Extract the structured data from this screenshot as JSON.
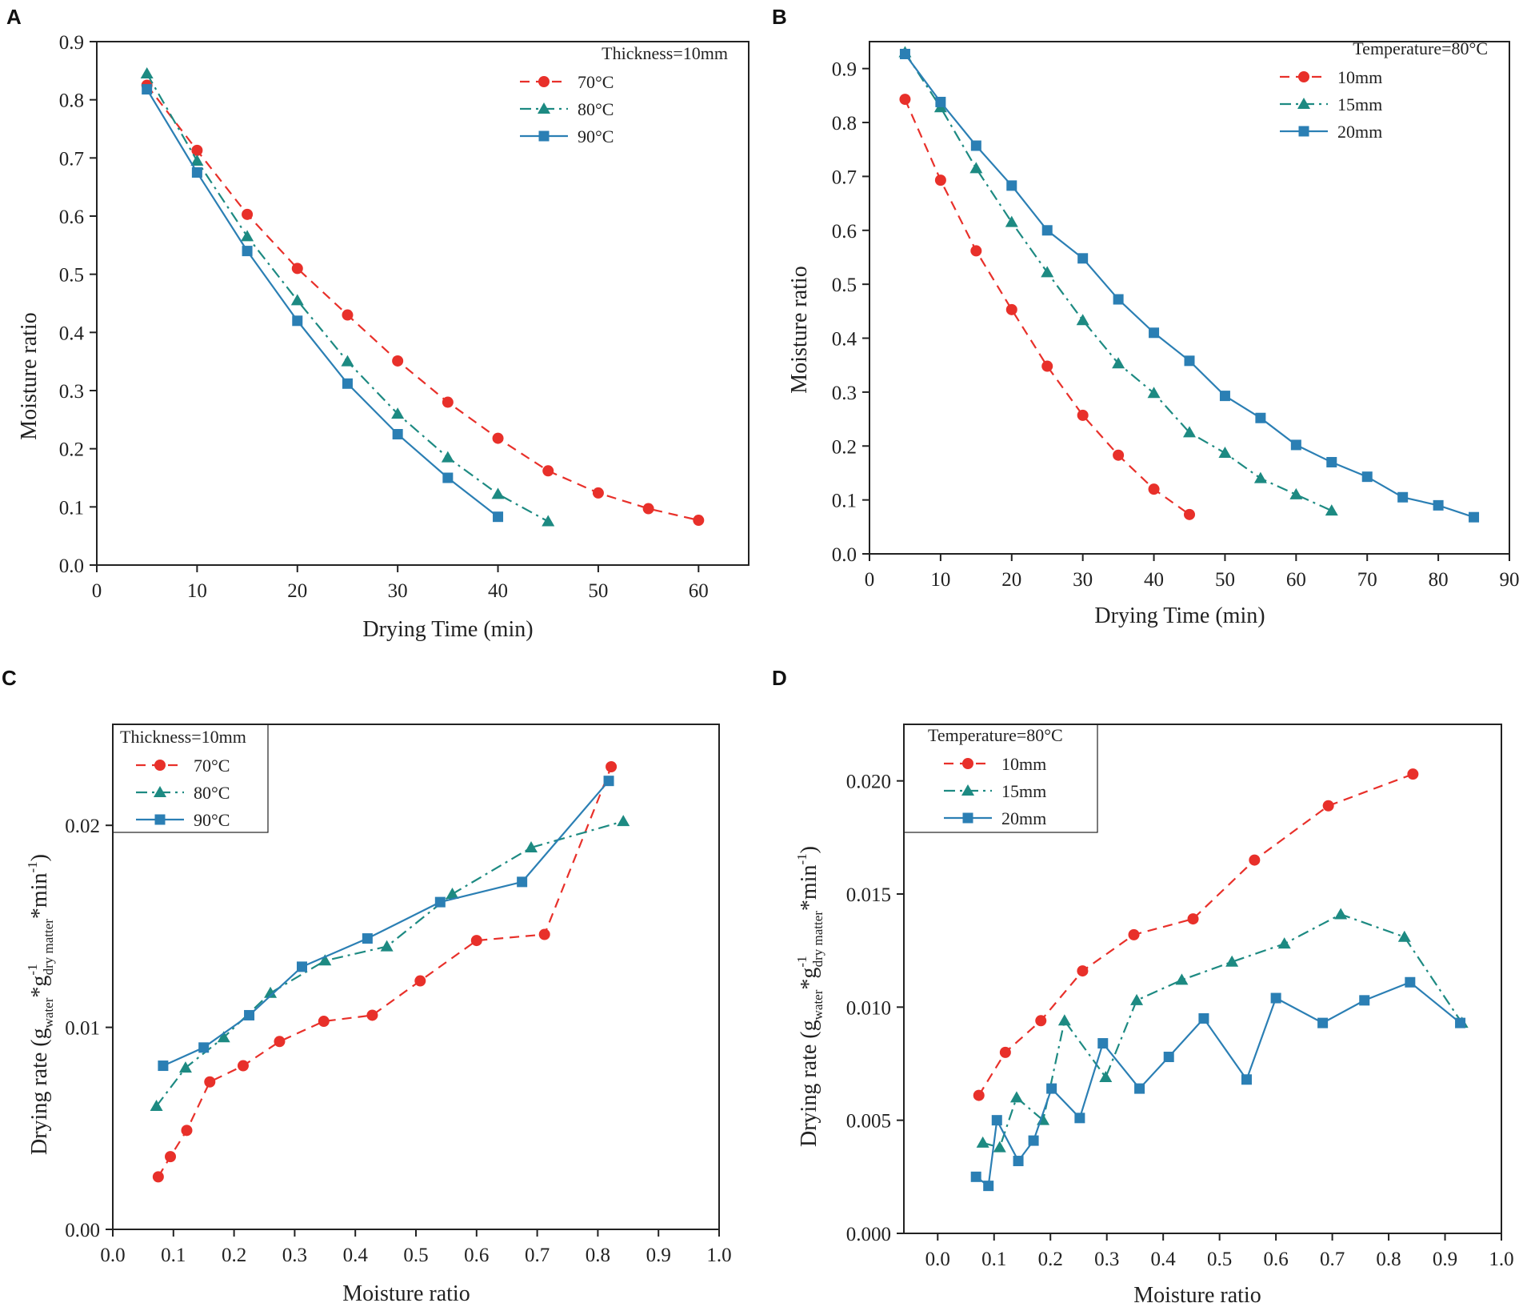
{
  "colors": {
    "red": "#e8302a",
    "teal": "#1d8a82",
    "blue": "#2b7fb4"
  },
  "chart_data": [
    {
      "id": "A",
      "letter": "A",
      "type": "line",
      "xlabel": "Drying Time (min)",
      "ylabel": "Moisture ratio",
      "xlim": [
        0,
        65
      ],
      "ylim": [
        0,
        0.9
      ],
      "xticks": [
        "0",
        "10",
        "20",
        "30",
        "40",
        "50",
        "60"
      ],
      "xtick_values": [
        0,
        10,
        20,
        30,
        40,
        50,
        60
      ],
      "yticks": [
        "0.0",
        "0.1",
        "0.2",
        "0.3",
        "0.4",
        "0.5",
        "0.6",
        "0.7",
        "0.8",
        "0.9"
      ],
      "ytick_values": [
        0,
        0.1,
        0.2,
        0.3,
        0.4,
        0.5,
        0.6,
        0.7,
        0.8,
        0.9
      ],
      "legend_title": "Thickness=10mm",
      "legend_position": "top-right",
      "series": [
        {
          "name": "70°C",
          "color": "red",
          "dash": "dashed",
          "marker": "circle",
          "x": [
            5,
            10,
            15,
            20,
            25,
            30,
            35,
            40,
            45,
            50,
            55,
            60
          ],
          "y": [
            0.825,
            0.713,
            0.603,
            0.51,
            0.43,
            0.351,
            0.28,
            0.218,
            0.162,
            0.124,
            0.097,
            0.077
          ]
        },
        {
          "name": "80°C",
          "color": "teal",
          "dash": "dashdot",
          "marker": "triangle",
          "x": [
            5,
            10,
            15,
            20,
            25,
            30,
            35,
            40,
            45
          ],
          "y": [
            0.845,
            0.695,
            0.565,
            0.455,
            0.35,
            0.26,
            0.185,
            0.122,
            0.075
          ]
        },
        {
          "name": "90°C",
          "color": "blue",
          "dash": "solid",
          "marker": "square",
          "x": [
            5,
            10,
            15,
            20,
            25,
            30,
            35,
            40
          ],
          "y": [
            0.818,
            0.675,
            0.54,
            0.42,
            0.312,
            0.225,
            0.15,
            0.083
          ]
        }
      ]
    },
    {
      "id": "B",
      "letter": "B",
      "type": "line",
      "xlabel": "Drying Time (min)",
      "ylabel": "Moisture ratio",
      "xlim": [
        0,
        90
      ],
      "ylim": [
        0,
        0.95
      ],
      "xticks": [
        "0",
        "10",
        "20",
        "30",
        "40",
        "50",
        "60",
        "70",
        "80",
        "90"
      ],
      "xtick_values": [
        0,
        10,
        20,
        30,
        40,
        50,
        60,
        70,
        80,
        90
      ],
      "yticks": [
        "0.0",
        "0.1",
        "0.2",
        "0.3",
        "0.4",
        "0.5",
        "0.6",
        "0.7",
        "0.8",
        "0.9"
      ],
      "ytick_values": [
        0,
        0.1,
        0.2,
        0.3,
        0.4,
        0.5,
        0.6,
        0.7,
        0.8,
        0.9
      ],
      "legend_title": "Temperature=80°C",
      "legend_position": "top-right",
      "series": [
        {
          "name": "10mm",
          "color": "red",
          "dash": "dashed",
          "marker": "circle",
          "x": [
            5,
            10,
            15,
            20,
            25,
            30,
            35,
            40,
            45
          ],
          "y": [
            0.843,
            0.693,
            0.562,
            0.453,
            0.348,
            0.257,
            0.183,
            0.12,
            0.073
          ]
        },
        {
          "name": "15mm",
          "color": "teal",
          "dash": "dashdot",
          "marker": "triangle",
          "x": [
            5,
            10,
            15,
            20,
            25,
            30,
            35,
            40,
            45,
            50,
            55,
            60,
            65
          ],
          "y": [
            0.93,
            0.828,
            0.715,
            0.615,
            0.522,
            0.433,
            0.353,
            0.298,
            0.225,
            0.187,
            0.14,
            0.11,
            0.08
          ]
        },
        {
          "name": "20mm",
          "color": "blue",
          "dash": "solid",
          "marker": "square",
          "x": [
            5,
            10,
            15,
            20,
            25,
            30,
            35,
            40,
            45,
            50,
            55,
            60,
            65,
            70,
            75,
            80,
            85
          ],
          "y": [
            0.927,
            0.838,
            0.757,
            0.683,
            0.6,
            0.548,
            0.472,
            0.41,
            0.358,
            0.293,
            0.252,
            0.202,
            0.17,
            0.143,
            0.105,
            0.09,
            0.068
          ]
        }
      ]
    },
    {
      "id": "C",
      "letter": "C",
      "type": "line",
      "xlabel": "Moisture ratio",
      "ylabel": "Drying rate",
      "xlim": [
        0,
        1.0
      ],
      "ylim": [
        0,
        0.025
      ],
      "xticks": [
        "0.0",
        "0.1",
        "0.2",
        "0.3",
        "0.4",
        "0.5",
        "0.6",
        "0.7",
        "0.8",
        "0.9",
        "1.0"
      ],
      "xtick_values": [
        0,
        0.1,
        0.2,
        0.3,
        0.4,
        0.5,
        0.6,
        0.7,
        0.8,
        0.9,
        1.0
      ],
      "yticks": [
        "0.00",
        "0.01",
        "0.02"
      ],
      "ytick_values": [
        0,
        0.01,
        0.02
      ],
      "legend_title": "Thickness=10mm",
      "legend_position": "top-left",
      "series": [
        {
          "name": "70°C",
          "color": "red",
          "dash": "dashed",
          "marker": "circle",
          "x": [
            0.075,
            0.095,
            0.122,
            0.16,
            0.215,
            0.275,
            0.348,
            0.428,
            0.507,
            0.6,
            0.712,
            0.822
          ],
          "y": [
            0.0026,
            0.0036,
            0.0049,
            0.0073,
            0.0081,
            0.0093,
            0.0103,
            0.0106,
            0.0123,
            0.0143,
            0.0146,
            0.0229
          ]
        },
        {
          "name": "80°C",
          "color": "teal",
          "dash": "dashdot",
          "marker": "triangle",
          "x": [
            0.072,
            0.12,
            0.183,
            0.26,
            0.35,
            0.452,
            0.56,
            0.69,
            0.842
          ],
          "y": [
            0.0061,
            0.008,
            0.0095,
            0.0117,
            0.0133,
            0.014,
            0.0166,
            0.0189,
            0.0202
          ]
        },
        {
          "name": "90°C",
          "color": "blue",
          "dash": "solid",
          "marker": "square",
          "x": [
            0.083,
            0.15,
            0.225,
            0.312,
            0.42,
            0.54,
            0.675,
            0.818
          ],
          "y": [
            0.0081,
            0.009,
            0.0106,
            0.013,
            0.0144,
            0.0162,
            0.0172,
            0.0222
          ]
        }
      ]
    },
    {
      "id": "D",
      "letter": "D",
      "type": "line",
      "xlabel": "Moisture ratio",
      "ylabel": "Drying rate",
      "xlim": [
        -0.06,
        1.0
      ],
      "ylim": [
        0,
        0.0225
      ],
      "xticks": [
        "0.0",
        "0.1",
        "0.2",
        "0.3",
        "0.4",
        "0.5",
        "0.6",
        "0.7",
        "0.8",
        "0.9",
        "1.0"
      ],
      "xtick_values": [
        0,
        0.1,
        0.2,
        0.3,
        0.4,
        0.5,
        0.6,
        0.7,
        0.8,
        0.9,
        1.0
      ],
      "yticks": [
        "0.000",
        "0.005",
        "0.010",
        "0.015",
        "0.020"
      ],
      "ytick_values": [
        0,
        0.005,
        0.01,
        0.015,
        0.02
      ],
      "legend_title": "Temperature=80°C",
      "legend_position": "top-left",
      "series": [
        {
          "name": "10mm",
          "color": "red",
          "dash": "dashed",
          "marker": "circle",
          "x": [
            0.073,
            0.12,
            0.183,
            0.257,
            0.348,
            0.453,
            0.562,
            0.693,
            0.843
          ],
          "y": [
            0.0061,
            0.008,
            0.0094,
            0.0116,
            0.0132,
            0.0139,
            0.0165,
            0.0189,
            0.0203
          ]
        },
        {
          "name": "15mm",
          "color": "teal",
          "dash": "dashdot",
          "marker": "triangle",
          "x": [
            0.08,
            0.11,
            0.14,
            0.187,
            0.225,
            0.298,
            0.353,
            0.433,
            0.522,
            0.615,
            0.715,
            0.828,
            0.93
          ],
          "y": [
            0.004,
            0.0038,
            0.006,
            0.005,
            0.0094,
            0.0069,
            0.0103,
            0.0112,
            0.012,
            0.0128,
            0.0141,
            0.0131,
            0.0093
          ]
        },
        {
          "name": "20mm",
          "color": "blue",
          "dash": "solid",
          "marker": "square",
          "x": [
            0.068,
            0.09,
            0.105,
            0.143,
            0.17,
            0.202,
            0.252,
            0.293,
            0.358,
            0.41,
            0.472,
            0.548,
            0.6,
            0.683,
            0.757,
            0.838,
            0.927
          ],
          "y": [
            0.0025,
            0.0021,
            0.005,
            0.0032,
            0.0041,
            0.0064,
            0.0051,
            0.0084,
            0.0064,
            0.0078,
            0.0095,
            0.0068,
            0.0104,
            0.0093,
            0.0103,
            0.0111,
            0.0093
          ]
        }
      ]
    }
  ]
}
